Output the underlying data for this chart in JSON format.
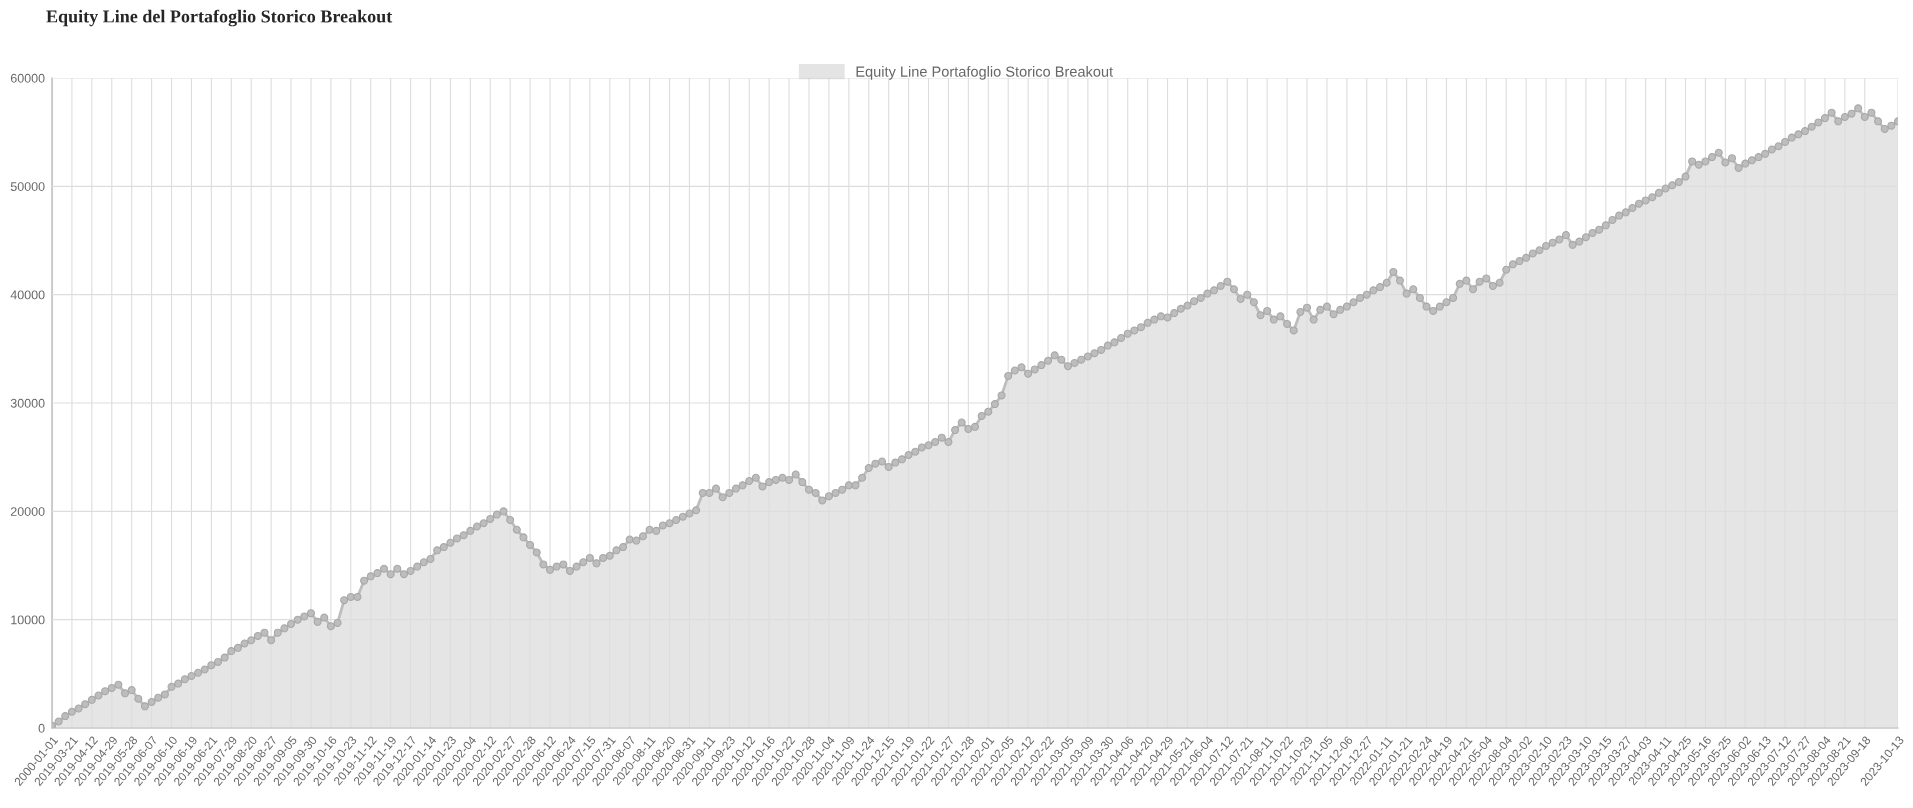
{
  "chart_data": {
    "type": "area",
    "title": "Equity Line del Portafoglio Storico Breakout",
    "categories": [
      "2000-01-01",
      null,
      null,
      "2019-03-21",
      null,
      null,
      "2019-04-12",
      null,
      null,
      "2019-04-29",
      null,
      null,
      "2019-05-28",
      null,
      null,
      "2019-06-07",
      null,
      null,
      "2019-06-10",
      null,
      null,
      "2019-06-19",
      null,
      null,
      "2019-06-21",
      null,
      null,
      "2019-07-29",
      null,
      null,
      "2019-08-20",
      null,
      null,
      "2019-08-27",
      null,
      null,
      "2019-09-05",
      null,
      null,
      "2019-09-30",
      null,
      null,
      "2019-10-16",
      null,
      null,
      "2019-10-23",
      null,
      null,
      "2019-11-12",
      null,
      null,
      "2019-11-19",
      null,
      null,
      "2019-12-17",
      null,
      null,
      "2020-01-14",
      null,
      null,
      "2020-01-23",
      null,
      null,
      "2020-02-04",
      null,
      null,
      "2020-02-12",
      null,
      null,
      "2020-02-27",
      null,
      null,
      "2020-02-28",
      null,
      null,
      "2020-06-12",
      null,
      null,
      "2020-06-24",
      null,
      null,
      "2020-07-15",
      null,
      null,
      "2020-07-31",
      null,
      null,
      "2020-08-07",
      null,
      null,
      "2020-08-11",
      null,
      null,
      "2020-08-20",
      null,
      null,
      "2020-08-31",
      null,
      null,
      "2020-09-11",
      null,
      null,
      "2020-09-23",
      null,
      null,
      "2020-10-12",
      null,
      null,
      "2020-10-16",
      null,
      null,
      "2020-10-22",
      null,
      null,
      "2020-10-28",
      null,
      null,
      "2020-11-04",
      null,
      null,
      "2020-11-09",
      null,
      null,
      "2020-11-24",
      null,
      null,
      "2020-12-15",
      null,
      null,
      "2021-01-19",
      null,
      null,
      "2021-01-22",
      null,
      null,
      "2021-01-27",
      null,
      null,
      "2021-01-28",
      null,
      null,
      "2021-02-01",
      null,
      null,
      "2021-02-05",
      null,
      null,
      "2021-02-12",
      null,
      null,
      "2021-02-22",
      null,
      null,
      "2021-03-05",
      null,
      null,
      "2021-03-09",
      null,
      null,
      "2021-03-30",
      null,
      null,
      "2021-04-06",
      null,
      null,
      "2021-04-20",
      null,
      null,
      "2021-04-29",
      null,
      null,
      "2021-05-21",
      null,
      null,
      "2021-06-04",
      null,
      null,
      "2021-07-12",
      null,
      null,
      "2021-07-21",
      null,
      null,
      "2021-08-11",
      null,
      null,
      "2021-10-22",
      null,
      null,
      "2021-10-29",
      null,
      null,
      "2021-11-05",
      null,
      null,
      "2021-12-06",
      null,
      null,
      "2021-12-27",
      null,
      null,
      "2022-01-11",
      null,
      null,
      "2022-01-21",
      null,
      null,
      "2022-02-24",
      null,
      null,
      "2022-04-19",
      null,
      null,
      "2022-04-21",
      null,
      null,
      "2022-05-04",
      null,
      null,
      "2022-08-04",
      null,
      null,
      "2023-02-02",
      null,
      null,
      "2023-02-10",
      null,
      null,
      "2023-02-23",
      null,
      null,
      "2023-03-10",
      null,
      null,
      "2023-03-15",
      null,
      null,
      "2023-03-27",
      null,
      null,
      "2023-04-03",
      null,
      null,
      "2023-04-11",
      null,
      null,
      "2023-04-25",
      null,
      null,
      "2023-05-16",
      null,
      null,
      "2023-05-25",
      null,
      null,
      "2023-06-02",
      null,
      null,
      "2023-06-13",
      null,
      null,
      "2023-07-12",
      null,
      null,
      "2023-07-27",
      null,
      null,
      "2023-08-04",
      null,
      null,
      "2023-08-21",
      null,
      null,
      "2023-09-18",
      null,
      null,
      null,
      null,
      "2023-10-13"
    ],
    "series": [
      {
        "name": "Equity Line Portafoglio Storico Breakout",
        "color": "#bdbdbd",
        "values": [
          200,
          600,
          1100,
          1500,
          1800,
          2200,
          2600,
          3000,
          3400,
          3700,
          4000,
          3200,
          3500,
          2700,
          2000,
          2400,
          2800,
          3100,
          3800,
          4100,
          4500,
          4800,
          5100,
          5400,
          5800,
          6100,
          6500,
          7100,
          7400,
          7800,
          8100,
          8500,
          8800,
          8100,
          8800,
          9200,
          9600,
          10000,
          10300,
          10600,
          9800,
          10200,
          9400,
          9700,
          11800,
          12100,
          12100,
          13600,
          14000,
          14300,
          14700,
          14200,
          14700,
          14200,
          14500,
          14900,
          15300,
          15600,
          16400,
          16700,
          17100,
          17500,
          17800,
          18200,
          18600,
          18900,
          19300,
          19700,
          20000,
          19200,
          18300,
          17600,
          16900,
          16200,
          15100,
          14600,
          14900,
          15100,
          14500,
          14900,
          15300,
          15700,
          15200,
          15700,
          15900,
          16400,
          16700,
          17400,
          17300,
          17700,
          18300,
          18200,
          18700,
          18900,
          19200,
          19500,
          19800,
          20100,
          21700,
          21700,
          22100,
          21300,
          21700,
          22100,
          22400,
          22800,
          23100,
          22300,
          22700,
          22900,
          23100,
          22900,
          23400,
          22700,
          22000,
          21700,
          21000,
          21400,
          21700,
          22000,
          22400,
          22400,
          23100,
          24000,
          24400,
          24600,
          24100,
          24500,
          24800,
          25200,
          25500,
          25900,
          26100,
          26400,
          26800,
          26400,
          27500,
          28200,
          27600,
          27800,
          28800,
          29200,
          29900,
          30700,
          32500,
          33000,
          33300,
          32700,
          33100,
          33500,
          33900,
          34400,
          34000,
          33400,
          33700,
          34000,
          34300,
          34600,
          34900,
          35300,
          35600,
          36000,
          36400,
          36700,
          37000,
          37400,
          37700,
          38000,
          37900,
          38300,
          38700,
          39000,
          39400,
          39700,
          40100,
          40400,
          40800,
          41200,
          40500,
          39600,
          40000,
          39300,
          38100,
          38500,
          37700,
          38000,
          37300,
          36700,
          38400,
          38800,
          37700,
          38600,
          38900,
          38200,
          38600,
          38900,
          39300,
          39700,
          40000,
          40400,
          40700,
          41100,
          42100,
          41300,
          40100,
          40500,
          39700,
          38900,
          38500,
          38900,
          39300,
          39700,
          41000,
          41300,
          40500,
          41200,
          41500,
          40800,
          41100,
          42300,
          42800,
          43100,
          43400,
          43800,
          44100,
          44500,
          44800,
          45100,
          45500,
          44600,
          44900,
          45300,
          45700,
          46000,
          46400,
          46900,
          47300,
          47600,
          48000,
          48400,
          48700,
          49000,
          49400,
          49800,
          50100,
          50400,
          50900,
          52300,
          52000,
          52300,
          52700,
          53100,
          52200,
          52600,
          51700,
          52100,
          52400,
          52700,
          53000,
          53400,
          53700,
          54100,
          54500,
          54800,
          55100,
          55500,
          55900,
          56300,
          56800,
          56000,
          56400,
          56700,
          57200,
          56400,
          56800,
          56000,
          55300,
          55600,
          56000
        ]
      }
    ],
    "ylim": [
      0,
      60000
    ],
    "yticks": [
      0,
      10000,
      20000,
      30000,
      40000,
      50000,
      60000
    ],
    "grid": true,
    "legend": "top",
    "marker": "circle"
  }
}
